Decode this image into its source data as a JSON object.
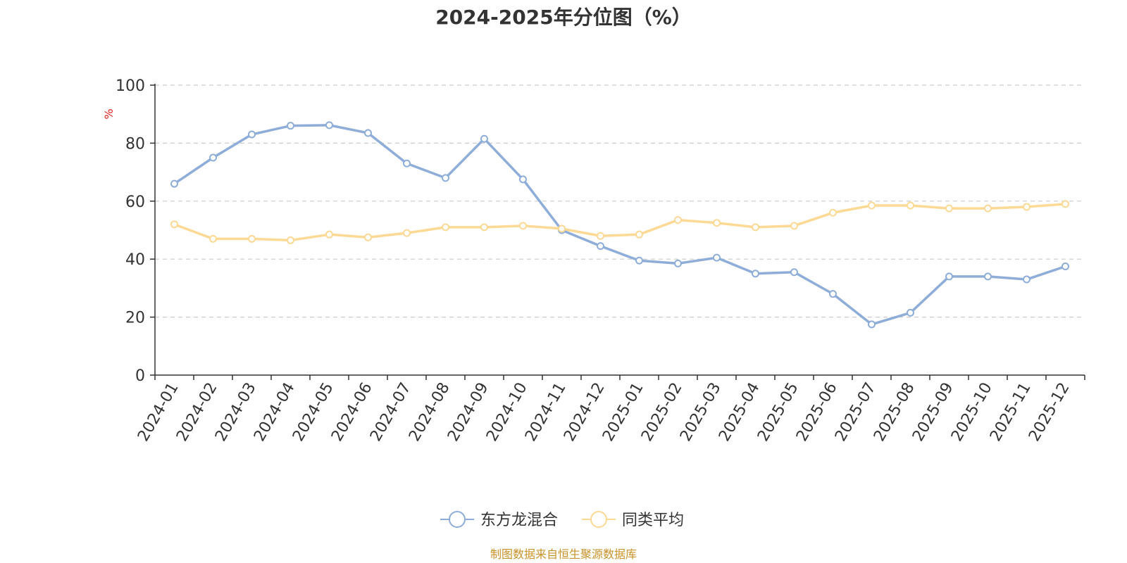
{
  "chart_data": {
    "type": "line",
    "title": "2024-2025年分位图（%）",
    "ylabel": "%",
    "ylim": [
      0,
      100
    ],
    "yticks": [
      0,
      20,
      40,
      60,
      80,
      100
    ],
    "grid": true,
    "legend_position": "bottom",
    "categories": [
      "2024-01",
      "2024-02",
      "2024-03",
      "2024-04",
      "2024-05",
      "2024-06",
      "2024-07",
      "2024-08",
      "2024-09",
      "2024-10",
      "2024-11",
      "2024-12",
      "2025-01",
      "2025-02",
      "2025-03",
      "2025-04",
      "2025-05",
      "2025-06",
      "2025-07",
      "2025-08",
      "2025-09",
      "2025-10",
      "2025-11",
      "2025-12"
    ],
    "series": [
      {
        "name": "东方龙混合",
        "color": "#8eadd8",
        "values": [
          66,
          75,
          83,
          86,
          86.2,
          83.5,
          73,
          68,
          81.5,
          67.5,
          50,
          44.5,
          39.5,
          38.5,
          40.5,
          35,
          35.5,
          28,
          17.5,
          21.5,
          34,
          34,
          33,
          37.5
        ]
      },
      {
        "name": "同类平均",
        "color": "#fcd995",
        "values": [
          52,
          47,
          47,
          46.5,
          48.5,
          47.5,
          49,
          51,
          51,
          51.5,
          50.5,
          48,
          48.5,
          53.5,
          52.5,
          51,
          51.5,
          56,
          58.5,
          58.5,
          57.5,
          57.5,
          58,
          59
        ]
      }
    ]
  },
  "source_note": "制图数据来自恒生聚源数据库"
}
